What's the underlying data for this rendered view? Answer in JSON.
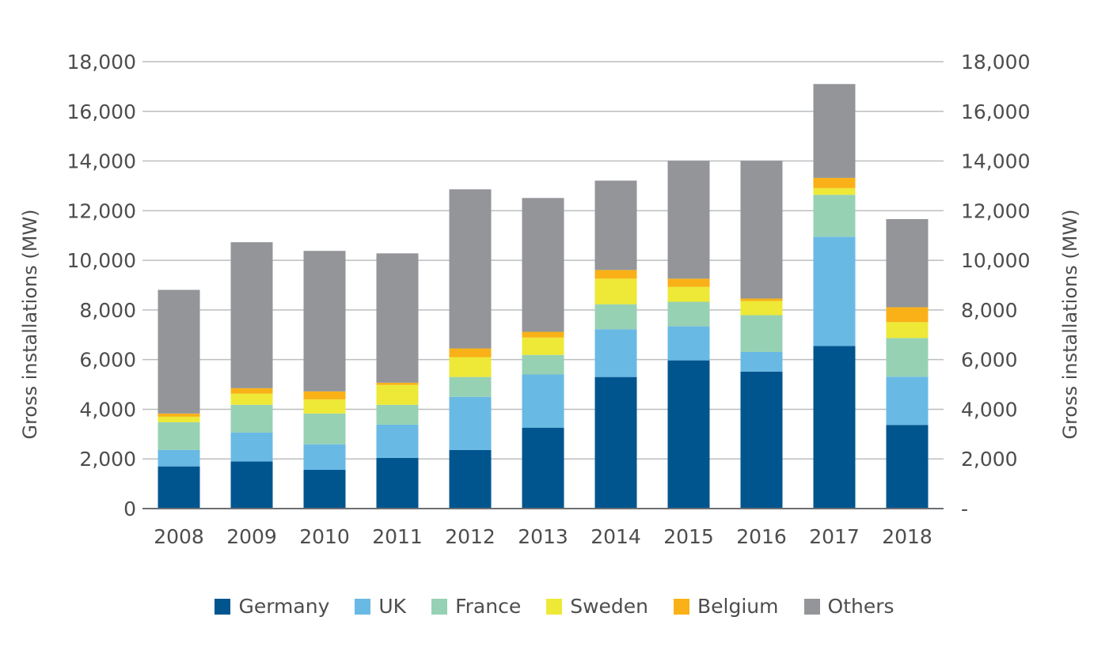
{
  "chart_data": {
    "type": "bar",
    "stacked": true,
    "title": "",
    "xlabel": "",
    "ylabel": "Gross installations (MW)",
    "y2label": "Gross installations (MW)",
    "ylim": [
      0,
      18000
    ],
    "yticks": [
      0,
      2000,
      4000,
      6000,
      8000,
      10000,
      12000,
      14000,
      16000,
      18000
    ],
    "ytick_labels": [
      "0",
      "2,000",
      "4,000",
      "6,000",
      "8,000",
      "10,000",
      "12,000",
      "14,000",
      "16,000",
      "18,000"
    ],
    "y2tick_labels": [
      "-",
      "2,000",
      "4,000",
      "6,000",
      "8,000",
      "10,000",
      "12,000",
      "14,000",
      "16,000",
      "18,000"
    ],
    "grid": true,
    "legend_position": "bottom",
    "categories": [
      "2008",
      "2009",
      "2010",
      "2011",
      "2012",
      "2013",
      "2014",
      "2015",
      "2016",
      "2017",
      "2018"
    ],
    "series": [
      {
        "name": "Germany",
        "color": "#00558f",
        "values": [
          1700,
          1900,
          1560,
          2040,
          2360,
          3260,
          5300,
          5970,
          5520,
          6550,
          3370
        ]
      },
      {
        "name": "UK",
        "color": "#69b9e5",
        "values": [
          660,
          1160,
          1030,
          1340,
          2140,
          2140,
          1920,
          1370,
          790,
          4400,
          1940
        ]
      },
      {
        "name": "France",
        "color": "#96d1b4",
        "values": [
          1120,
          1120,
          1240,
          800,
          800,
          790,
          1010,
          990,
          1480,
          1690,
          1560
        ]
      },
      {
        "name": "Sweden",
        "color": "#ede936",
        "values": [
          220,
          450,
          570,
          800,
          800,
          700,
          1030,
          600,
          570,
          270,
          640
        ]
      },
      {
        "name": "Belgium",
        "color": "#f9b117",
        "values": [
          130,
          220,
          320,
          90,
          350,
          230,
          350,
          330,
          100,
          410,
          600
        ]
      },
      {
        "name": "Others",
        "color": "#939598",
        "values": [
          4980,
          5880,
          5660,
          5210,
          6410,
          5390,
          3600,
          4750,
          5550,
          3780,
          3550
        ]
      }
    ]
  }
}
